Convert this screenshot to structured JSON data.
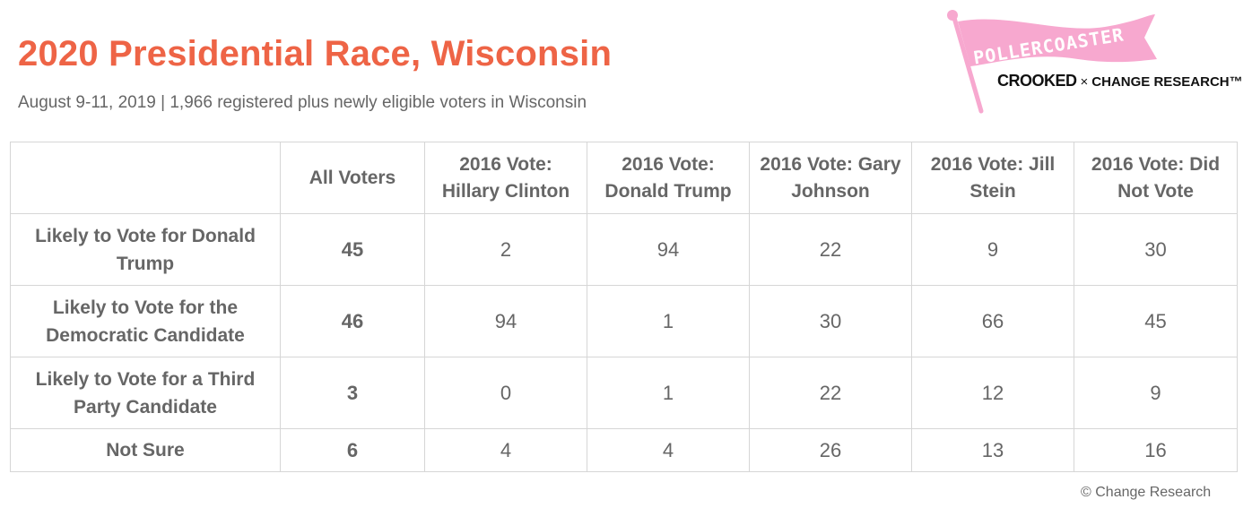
{
  "header": {
    "title": "2020 Presidential Race, Wisconsin",
    "subtitle": "August 9-11, 2019 | 1,966 registered plus newly eligible voters in Wisconsin"
  },
  "logo": {
    "flag_text": "POLLERCOASTER",
    "brand_left": "CROOKED",
    "brand_x": "×",
    "brand_right": "CHANGE RESEARCH™",
    "flag_color": "#f7a8cf",
    "flag_text_color": "#ffffff"
  },
  "colors": {
    "title": "#ee6446",
    "text": "#666666",
    "grid": "#d6d6d6"
  },
  "chart_data": {
    "type": "table",
    "columns": [
      "",
      "All Voters",
      "2016 Vote: Hillary Clinton",
      "2016 Vote: Donald Trump",
      "2016 Vote: Gary Johnson",
      "2016 Vote: Jill Stein",
      "2016 Vote: Did Not Vote"
    ],
    "rows": [
      {
        "label": "Likely to Vote for Donald Trump",
        "values": [
          "45",
          "2",
          "94",
          "22",
          "9",
          "30"
        ]
      },
      {
        "label": "Likely to Vote for the Democratic Candidate",
        "values": [
          "46",
          "94",
          "1",
          "30",
          "66",
          "45"
        ]
      },
      {
        "label": "Likely to Vote for a Third Party Candidate",
        "values": [
          "3",
          "0",
          "1",
          "22",
          "12",
          "9"
        ]
      },
      {
        "label": "Not Sure",
        "values": [
          "6",
          "4",
          "4",
          "26",
          "13",
          "16"
        ]
      }
    ]
  },
  "footer": {
    "copyright": "© Change Research"
  }
}
